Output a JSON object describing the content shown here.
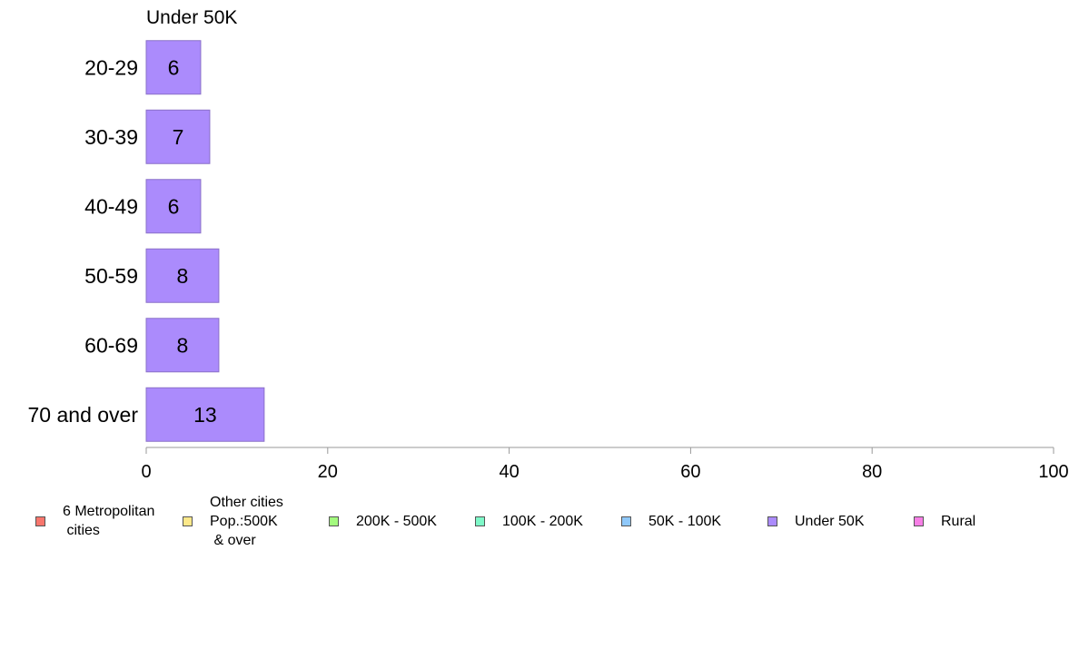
{
  "chart_data": {
    "type": "bar",
    "orientation": "horizontal",
    "title": "Under 50K",
    "categories": [
      "20-29",
      "30-39",
      "40-49",
      "50-59",
      "60-69",
      "70 and over"
    ],
    "series": [
      {
        "name": "Under 50K",
        "values": [
          6,
          7,
          6,
          8,
          8,
          13
        ],
        "color": "#ab8bfc"
      }
    ],
    "data_labels": [
      "6",
      "7",
      "6",
      "8",
      "8",
      "13"
    ],
    "xlim": [
      0,
      100
    ],
    "xticks": [
      0,
      20,
      40,
      60,
      80,
      100
    ],
    "grid": false,
    "legend_position": "bottom",
    "legend": [
      {
        "label": "6 Metropolitan\n cities",
        "color": "#f8766d"
      },
      {
        "label": "Other cities\nPop.:500K\n & over",
        "color": "#fce88a"
      },
      {
        "label": "200K - 500K",
        "color": "#a3fa7e"
      },
      {
        "label": "100K - 200K",
        "color": "#7ef8c8"
      },
      {
        "label": "50K - 100K",
        "color": "#8fc8fa"
      },
      {
        "label": "Under 50K",
        "color": "#ab8bfc"
      },
      {
        "label": "Rural",
        "color": "#f77fe6"
      }
    ]
  }
}
